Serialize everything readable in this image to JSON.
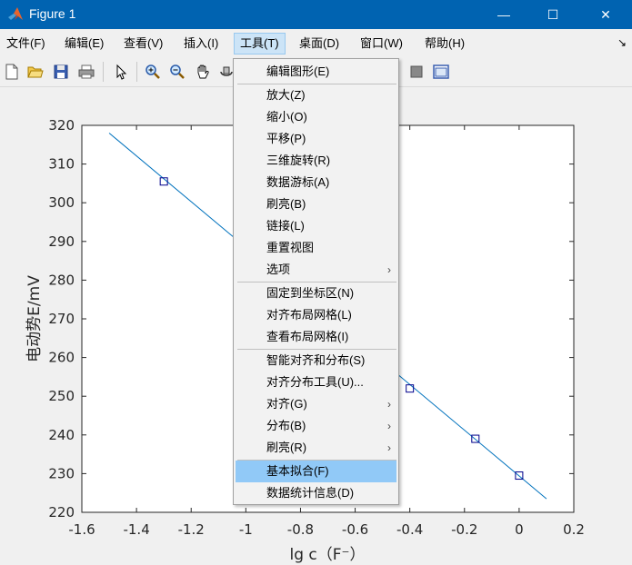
{
  "window": {
    "title": "Figure 1",
    "minimize_glyph": "—",
    "maximize_glyph": "☐",
    "close_glyph": "✕"
  },
  "menubar": {
    "items": [
      "文件(F)",
      "编辑(E)",
      "查看(V)",
      "插入(I)",
      "工具(T)",
      "桌面(D)",
      "窗口(W)",
      "帮助(H)"
    ],
    "active_index": 4,
    "dock_arrow": "↘"
  },
  "toolbar": {
    "icons": [
      "new-figure-icon",
      "open-file-icon",
      "save-icon",
      "print-icon",
      "select-arrow-icon",
      "zoom-in-icon",
      "zoom-out-icon",
      "pan-hand-icon",
      "rotate-3d-icon",
      "hide-plot-tools-icon",
      "show-plot-tools-icon"
    ]
  },
  "tools_menu": {
    "items": [
      {
        "label": "编辑图形(E)"
      },
      {
        "label": "放大(Z)"
      },
      {
        "label": "缩小(O)"
      },
      {
        "label": "平移(P)"
      },
      {
        "label": "三维旋转(R)"
      },
      {
        "label": "数据游标(A)"
      },
      {
        "label": "刷亮(B)"
      },
      {
        "label": "链接(L)"
      },
      {
        "label": "重置视图"
      },
      {
        "label": "选项",
        "submenu": true
      },
      {
        "label": "固定到坐标区(N)"
      },
      {
        "label": "对齐布局网格(L)"
      },
      {
        "label": "查看布局网格(I)"
      },
      {
        "label": "智能对齐和分布(S)"
      },
      {
        "label": "对齐分布工具(U)..."
      },
      {
        "label": "对齐(G)",
        "submenu": true
      },
      {
        "label": "分布(B)",
        "submenu": true
      },
      {
        "label": "刷亮(R)",
        "submenu": true
      },
      {
        "label": "基本拟合(F)",
        "highlighted": true
      },
      {
        "label": "数据统计信息(D)"
      }
    ],
    "submenu_glyph": "›"
  },
  "chart_data": {
    "type": "scatter",
    "xlabel": "lg c（F⁻）",
    "ylabel": "电动势E/mV",
    "xlim": [
      -1.6,
      0.2
    ],
    "ylim": [
      220,
      320
    ],
    "xticks": [
      "-1.6",
      "-1.4",
      "-1.2",
      "-1",
      "-0.8",
      "-0.6",
      "-0.4",
      "-0.2",
      "0",
      "0.2"
    ],
    "yticks": [
      "220",
      "230",
      "240",
      "250",
      "260",
      "270",
      "280",
      "290",
      "300",
      "310",
      "320"
    ],
    "points": [
      {
        "x": -1.3,
        "y": 305.5
      },
      {
        "x": -0.4,
        "y": 252.0
      },
      {
        "x": -0.16,
        "y": 239.0
      },
      {
        "x": 0,
        "y": 229.5
      }
    ],
    "fit_line": {
      "x": [
        -1.5,
        0.1
      ],
      "y": [
        318.0,
        223.5
      ]
    },
    "marker_color": "#00008b",
    "line_color": "#0072bd",
    "grid": false
  }
}
